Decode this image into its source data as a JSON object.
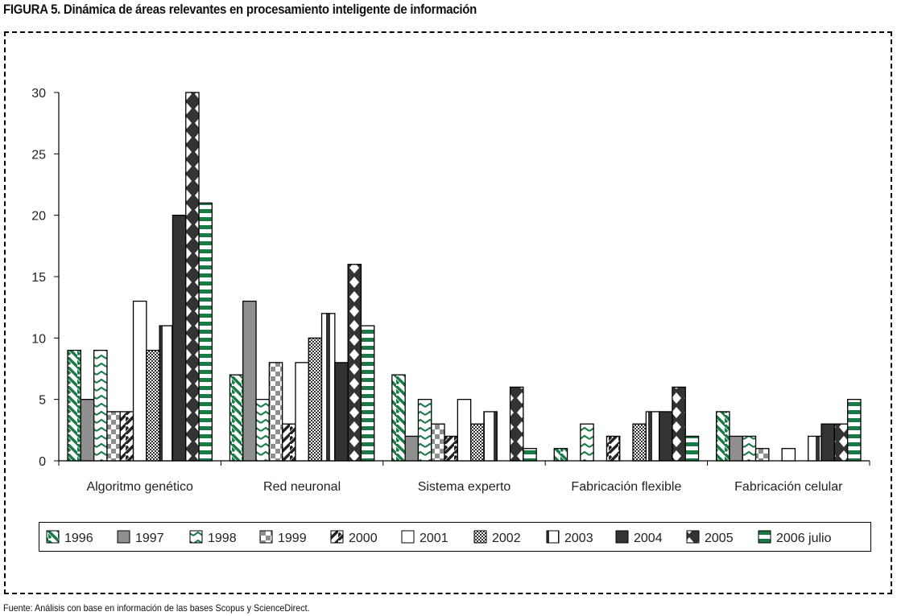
{
  "figure_title": "FIGURA 5. Dinámica de áreas relevantes en procesamiento inteligente de información",
  "source_note": "Fuente: Análisis con base en información de las bases Scopus y ScienceDirect.",
  "chart_data": {
    "type": "bar",
    "title": "FIGURA 5. Dinámica de áreas relevantes en procesamiento inteligente de información",
    "xlabel": "",
    "ylabel": "",
    "ylim": [
      0,
      30
    ],
    "yticks": [
      0,
      5,
      10,
      15,
      20,
      25,
      30
    ],
    "grid": false,
    "legend_position": "bottom",
    "categories": [
      "Algoritmo genético",
      "Red neuronal",
      "Sistema experto",
      "Fabricación flexible",
      "Fabricación celular"
    ],
    "series": [
      {
        "name": "1996",
        "pattern": "diag-green",
        "values": [
          9,
          7,
          7,
          1,
          4
        ]
      },
      {
        "name": "1997",
        "pattern": "solid-gray",
        "values": [
          5,
          13,
          2,
          0,
          2
        ]
      },
      {
        "name": "1998",
        "pattern": "chevron-green",
        "values": [
          9,
          5,
          5,
          3,
          2
        ]
      },
      {
        "name": "1999",
        "pattern": "checker-gray",
        "values": [
          4,
          8,
          3,
          0,
          1
        ]
      },
      {
        "name": "2000",
        "pattern": "diag-black",
        "values": [
          4,
          3,
          2,
          2,
          0
        ]
      },
      {
        "name": "2001",
        "pattern": "white",
        "values": [
          13,
          8,
          5,
          0,
          1
        ]
      },
      {
        "name": "2002",
        "pattern": "fine-checker",
        "values": [
          9,
          10,
          3,
          3,
          0
        ]
      },
      {
        "name": "2003",
        "pattern": "vstripe",
        "values": [
          11,
          12,
          4,
          4,
          2
        ]
      },
      {
        "name": "2004",
        "pattern": "solid-dark",
        "values": [
          20,
          8,
          0,
          4,
          3
        ]
      },
      {
        "name": "2005",
        "pattern": "diamond-dark",
        "values": [
          30,
          16,
          6,
          6,
          3
        ]
      },
      {
        "name": "2006 julio",
        "pattern": "hstripe-green",
        "values": [
          21,
          11,
          1,
          2,
          5
        ]
      }
    ],
    "colors": {
      "green": "#1a7a45",
      "gray": "#8f8f8f",
      "dark": "#333333",
      "black": "#000000"
    }
  }
}
